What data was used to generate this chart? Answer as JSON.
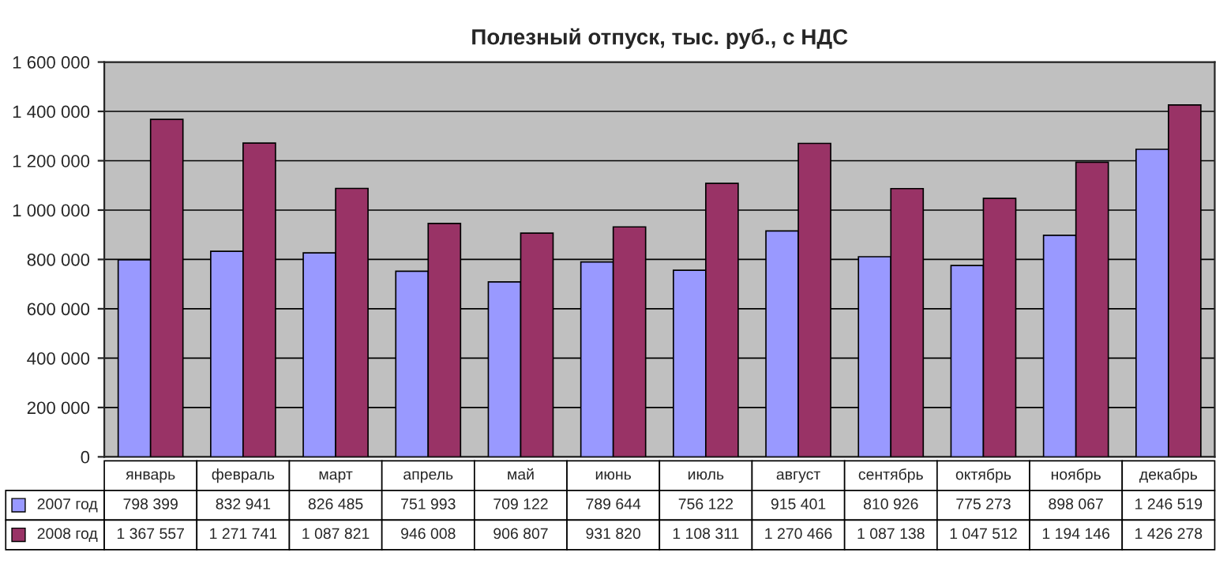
{
  "chart_data": {
    "type": "bar",
    "title": "Полезный отпуск, тыс. руб., с НДС",
    "categories": [
      "январь",
      "февраль",
      "март",
      "апрель",
      "май",
      "июнь",
      "июль",
      "август",
      "сентябрь",
      "октябрь",
      "ноябрь",
      "декабрь"
    ],
    "series": [
      {
        "name": "2007 год",
        "color": "#9999ff",
        "values": [
          798399,
          832941,
          826485,
          751993,
          709122,
          789644,
          756122,
          915401,
          810926,
          775273,
          898067,
          1246519
        ],
        "value_labels": [
          "798 399",
          "832 941",
          "826 485",
          "751 993",
          "709 122",
          "789 644",
          "756 122",
          "915 401",
          "810 926",
          "775 273",
          "898 067",
          "1 246 519"
        ]
      },
      {
        "name": "2008 год",
        "color": "#993366",
        "values": [
          1367557,
          1271741,
          1087821,
          946008,
          906807,
          931820,
          1108311,
          1270466,
          1087138,
          1047512,
          1194146,
          1426278
        ],
        "value_labels": [
          "1 367 557",
          "1 271 741",
          "1 087 821",
          "946 008",
          "906 807",
          "931 820",
          "1 108 311",
          "1 270 466",
          "1 087 138",
          "1 047 512",
          "1 194 146",
          "1 426 278"
        ]
      }
    ],
    "ylim": [
      0,
      1600000
    ],
    "yticks": [
      0,
      {
        "value": 200000,
        "label": "200 000"
      },
      {
        "value": 400000,
        "label": "400 000"
      },
      {
        "value": 600000,
        "label": "600 000"
      },
      {
        "value": 800000,
        "label": "800 000"
      },
      {
        "value": 1000000,
        "label": "1 000 000"
      },
      {
        "value": 1200000,
        "label": "1 200 000"
      },
      {
        "value": 1400000,
        "label": "1 400 000"
      },
      {
        "value": 1600000,
        "label": "1 600 000"
      }
    ],
    "grid": "y",
    "data_labels": true,
    "legend": "bottom left"
  }
}
